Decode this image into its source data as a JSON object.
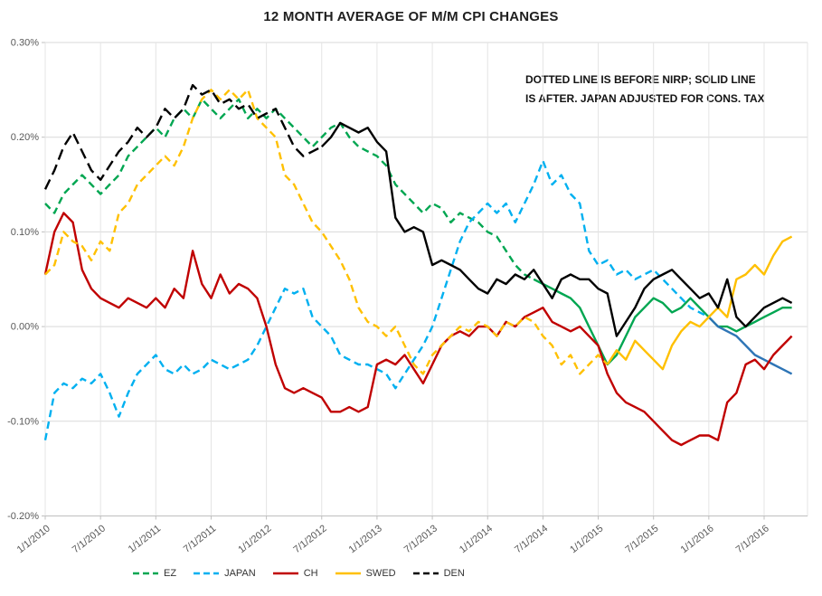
{
  "chart": {
    "title": "12 MONTH AVERAGE OF M/M CPI CHANGES",
    "annotation_line1": "DOTTED LINE IS BEFORE NIRP; SOLID LINE",
    "annotation_line2": "IS AFTER.  JAPAN ADJUSTED FOR CONS. TAX"
  },
  "chart_data": {
    "type": "line",
    "title": "12 MONTH AVERAGE OF M/M CPI CHANGES",
    "annotation": "DOTTED LINE IS BEFORE NIRP; SOLID LINE IS AFTER.  JAPAN ADJUSTED FOR CONS. TAX",
    "x_unit": "month",
    "x_start": "1/1/2010",
    "x_end": "10/1/2016",
    "ylim": [
      -0.2,
      0.3
    ],
    "y_gridline_step": 0.1,
    "grid": true,
    "legend_position": "bottom",
    "ytick_labels": [
      "0.30%",
      "0.20%",
      "0.10%",
      "0.00%",
      "-0.10%",
      "-0.20%"
    ],
    "xtick_labels": [
      "1/1/2010",
      "7/1/2010",
      "1/1/2011",
      "7/1/2011",
      "1/1/2012",
      "7/1/2012",
      "1/1/2013",
      "7/1/2013",
      "1/1/2014",
      "7/1/2014",
      "1/1/2015",
      "7/1/2015",
      "1/1/2016",
      "7/1/2016"
    ],
    "xtick_month_indices": [
      0,
      6,
      12,
      18,
      24,
      30,
      36,
      42,
      48,
      54,
      60,
      66,
      72,
      78
    ],
    "series": [
      {
        "name": "EZ",
        "color": "#00A651",
        "legend_style": "dashed",
        "solid_from_index": 53,
        "values": [
          0.13,
          0.12,
          0.14,
          0.15,
          0.16,
          0.15,
          0.14,
          0.15,
          0.16,
          0.18,
          0.19,
          0.2,
          0.21,
          0.2,
          0.22,
          0.23,
          0.22,
          0.24,
          0.23,
          0.22,
          0.23,
          0.24,
          0.22,
          0.23,
          0.22,
          0.23,
          0.22,
          0.21,
          0.2,
          0.19,
          0.2,
          0.21,
          0.215,
          0.2,
          0.19,
          0.185,
          0.18,
          0.17,
          0.15,
          0.14,
          0.13,
          0.12,
          0.13,
          0.125,
          0.11,
          0.12,
          0.115,
          0.11,
          0.1,
          0.095,
          0.08,
          0.065,
          0.055,
          0.05,
          0.045,
          0.04,
          0.035,
          0.03,
          0.02,
          0.0,
          -0.02,
          -0.04,
          -0.03,
          -0.01,
          0.01,
          0.02,
          0.03,
          0.025,
          0.015,
          0.02,
          0.03,
          0.02,
          0.01,
          0.0,
          0.0,
          -0.005,
          0.0,
          0.005,
          0.01,
          0.015,
          0.02,
          0.02
        ]
      },
      {
        "name": "JAPAN",
        "color": "#00B0F0",
        "solid_color": "#2E75B6",
        "legend_style": "dashed",
        "solid_from_index": 72,
        "values": [
          -0.12,
          -0.07,
          -0.06,
          -0.065,
          -0.055,
          -0.06,
          -0.05,
          -0.07,
          -0.095,
          -0.07,
          -0.05,
          -0.04,
          -0.03,
          -0.045,
          -0.05,
          -0.04,
          -0.05,
          -0.045,
          -0.035,
          -0.04,
          -0.045,
          -0.04,
          -0.035,
          -0.02,
          0.0,
          0.02,
          0.04,
          0.035,
          0.04,
          0.01,
          0.0,
          -0.01,
          -0.03,
          -0.035,
          -0.04,
          -0.04,
          -0.045,
          -0.05,
          -0.065,
          -0.05,
          -0.035,
          -0.02,
          0.0,
          0.03,
          0.06,
          0.09,
          0.11,
          0.12,
          0.13,
          0.12,
          0.13,
          0.11,
          0.13,
          0.15,
          0.175,
          0.15,
          0.16,
          0.14,
          0.13,
          0.08,
          0.065,
          0.07,
          0.055,
          0.06,
          0.05,
          0.055,
          0.06,
          0.05,
          0.04,
          0.03,
          0.02,
          0.015,
          0.01,
          0.0,
          -0.005,
          -0.01,
          -0.02,
          -0.03,
          -0.035,
          -0.04,
          -0.045,
          -0.05
        ]
      },
      {
        "name": "CH",
        "color": "#C00000",
        "legend_style": "solid",
        "solid_from_index": 0,
        "values": [
          0.055,
          0.1,
          0.12,
          0.11,
          0.06,
          0.04,
          0.03,
          0.025,
          0.02,
          0.03,
          0.025,
          0.02,
          0.03,
          0.02,
          0.04,
          0.03,
          0.08,
          0.045,
          0.03,
          0.055,
          0.035,
          0.045,
          0.04,
          0.03,
          0.0,
          -0.04,
          -0.065,
          -0.07,
          -0.065,
          -0.07,
          -0.075,
          -0.09,
          -0.09,
          -0.085,
          -0.09,
          -0.085,
          -0.04,
          -0.035,
          -0.04,
          -0.03,
          -0.045,
          -0.06,
          -0.04,
          -0.02,
          -0.01,
          -0.005,
          -0.01,
          0.0,
          0.0,
          -0.01,
          0.005,
          0.0,
          0.01,
          0.015,
          0.02,
          0.005,
          0.0,
          -0.005,
          0.0,
          -0.01,
          -0.02,
          -0.05,
          -0.07,
          -0.08,
          -0.085,
          -0.09,
          -0.1,
          -0.11,
          -0.12,
          -0.125,
          -0.12,
          -0.115,
          -0.115,
          -0.12,
          -0.08,
          -0.07,
          -0.04,
          -0.035,
          -0.045,
          -0.03,
          -0.02,
          -0.01
        ]
      },
      {
        "name": "SWED",
        "color": "#FFC000",
        "legend_style": "solid",
        "solid_from_index": 61,
        "values": [
          0.055,
          0.065,
          0.1,
          0.09,
          0.085,
          0.07,
          0.09,
          0.08,
          0.12,
          0.13,
          0.15,
          0.16,
          0.17,
          0.18,
          0.17,
          0.19,
          0.22,
          0.24,
          0.25,
          0.24,
          0.25,
          0.24,
          0.25,
          0.22,
          0.21,
          0.2,
          0.16,
          0.15,
          0.13,
          0.11,
          0.1,
          0.085,
          0.07,
          0.05,
          0.02,
          0.005,
          0.0,
          -0.01,
          0.0,
          -0.02,
          -0.04,
          -0.05,
          -0.03,
          -0.02,
          -0.01,
          0.0,
          -0.005,
          0.005,
          0.0,
          -0.01,
          0.005,
          0.0,
          0.01,
          0.005,
          -0.01,
          -0.02,
          -0.04,
          -0.03,
          -0.05,
          -0.04,
          -0.03,
          -0.04,
          -0.025,
          -0.035,
          -0.015,
          -0.025,
          -0.035,
          -0.045,
          -0.02,
          -0.005,
          0.005,
          0.0,
          0.01,
          0.02,
          0.01,
          0.05,
          0.055,
          0.065,
          0.055,
          0.075,
          0.09,
          0.095
        ]
      },
      {
        "name": "DEN",
        "color": "#000000",
        "legend_style": "dashed",
        "solid_from_index": 30,
        "values": [
          0.145,
          0.165,
          0.19,
          0.205,
          0.185,
          0.165,
          0.155,
          0.17,
          0.185,
          0.195,
          0.21,
          0.2,
          0.21,
          0.23,
          0.22,
          0.23,
          0.255,
          0.245,
          0.25,
          0.235,
          0.24,
          0.23,
          0.235,
          0.22,
          0.225,
          0.23,
          0.21,
          0.19,
          0.18,
          0.185,
          0.19,
          0.2,
          0.215,
          0.21,
          0.205,
          0.21,
          0.195,
          0.185,
          0.115,
          0.1,
          0.105,
          0.1,
          0.065,
          0.07,
          0.065,
          0.06,
          0.05,
          0.04,
          0.035,
          0.05,
          0.045,
          0.055,
          0.05,
          0.06,
          0.045,
          0.03,
          0.05,
          0.055,
          0.05,
          0.05,
          0.04,
          0.035,
          -0.01,
          0.005,
          0.02,
          0.04,
          0.05,
          0.055,
          0.06,
          0.05,
          0.04,
          0.03,
          0.035,
          0.02,
          0.05,
          0.01,
          0.0,
          0.01,
          0.02,
          0.025,
          0.03,
          0.025
        ]
      }
    ]
  }
}
